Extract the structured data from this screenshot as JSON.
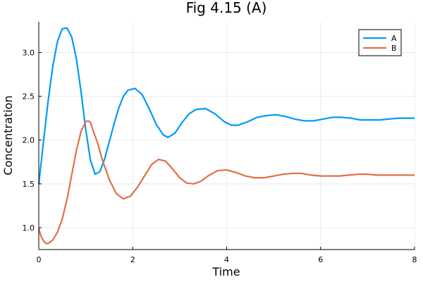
{
  "chart_data": {
    "type": "line",
    "title": "Fig 4.15 (A)",
    "xlabel": "Time",
    "ylabel": "Concentration",
    "xlim": [
      0,
      8
    ],
    "ylim": [
      0.75,
      3.35
    ],
    "x_ticks": [
      0,
      2,
      4,
      6,
      8
    ],
    "x_tick_labels": [
      "0",
      "2",
      "4",
      "6",
      "8"
    ],
    "y_ticks": [
      1.0,
      1.5,
      2.0,
      2.5,
      3.0
    ],
    "y_tick_labels": [
      "1.0",
      "1.5",
      "2.0",
      "2.5",
      "3.0"
    ],
    "grid": true,
    "legend_position": "top-right",
    "series": [
      {
        "name": "A",
        "color": "#009AFA",
        "x": [
          0,
          0.1,
          0.2,
          0.3,
          0.4,
          0.5,
          0.6,
          0.7,
          0.8,
          0.9,
          1.0,
          1.1,
          1.2,
          1.3,
          1.4,
          1.5,
          1.6,
          1.7,
          1.8,
          1.9,
          2.05,
          2.2,
          2.35,
          2.5,
          2.65,
          2.75,
          2.9,
          3.05,
          3.2,
          3.35,
          3.55,
          3.75,
          3.95,
          4.1,
          4.25,
          4.45,
          4.65,
          4.85,
          5.05,
          5.25,
          5.45,
          5.65,
          5.85,
          6.05,
          6.25,
          6.45,
          6.65,
          6.85,
          7.05,
          7.25,
          7.45,
          7.65,
          7.85,
          8.0
        ],
        "y": [
          1.5,
          1.98,
          2.45,
          2.85,
          3.13,
          3.27,
          3.28,
          3.18,
          2.93,
          2.55,
          2.12,
          1.77,
          1.61,
          1.64,
          1.78,
          1.98,
          2.18,
          2.36,
          2.5,
          2.57,
          2.59,
          2.52,
          2.36,
          2.18,
          2.06,
          2.03,
          2.08,
          2.2,
          2.3,
          2.35,
          2.36,
          2.3,
          2.21,
          2.17,
          2.17,
          2.21,
          2.26,
          2.28,
          2.29,
          2.27,
          2.24,
          2.22,
          2.22,
          2.24,
          2.26,
          2.26,
          2.25,
          2.23,
          2.23,
          2.23,
          2.24,
          2.25,
          2.25,
          2.25
        ]
      },
      {
        "name": "B",
        "color": "#E26F46",
        "x": [
          0,
          0.05,
          0.1,
          0.15,
          0.2,
          0.3,
          0.4,
          0.5,
          0.6,
          0.7,
          0.8,
          0.9,
          1.0,
          1.05,
          1.1,
          1.15,
          1.25,
          1.35,
          1.5,
          1.65,
          1.8,
          1.95,
          2.1,
          2.25,
          2.4,
          2.55,
          2.7,
          2.85,
          3.0,
          3.15,
          3.3,
          3.45,
          3.6,
          3.8,
          4.0,
          4.2,
          4.4,
          4.6,
          4.8,
          5.0,
          5.2,
          5.4,
          5.6,
          5.8,
          6.0,
          6.2,
          6.4,
          6.6,
          6.8,
          7.0,
          7.2,
          7.4,
          7.6,
          7.8,
          8.0
        ],
        "y": [
          0.99,
          0.9,
          0.85,
          0.82,
          0.82,
          0.86,
          0.95,
          1.1,
          1.32,
          1.6,
          1.88,
          2.1,
          2.21,
          2.22,
          2.2,
          2.12,
          1.97,
          1.78,
          1.55,
          1.39,
          1.33,
          1.36,
          1.46,
          1.59,
          1.72,
          1.78,
          1.76,
          1.67,
          1.57,
          1.51,
          1.5,
          1.53,
          1.59,
          1.65,
          1.66,
          1.63,
          1.59,
          1.57,
          1.57,
          1.59,
          1.61,
          1.62,
          1.62,
          1.6,
          1.59,
          1.59,
          1.59,
          1.6,
          1.61,
          1.61,
          1.6,
          1.6,
          1.6,
          1.6,
          1.6
        ]
      }
    ]
  }
}
